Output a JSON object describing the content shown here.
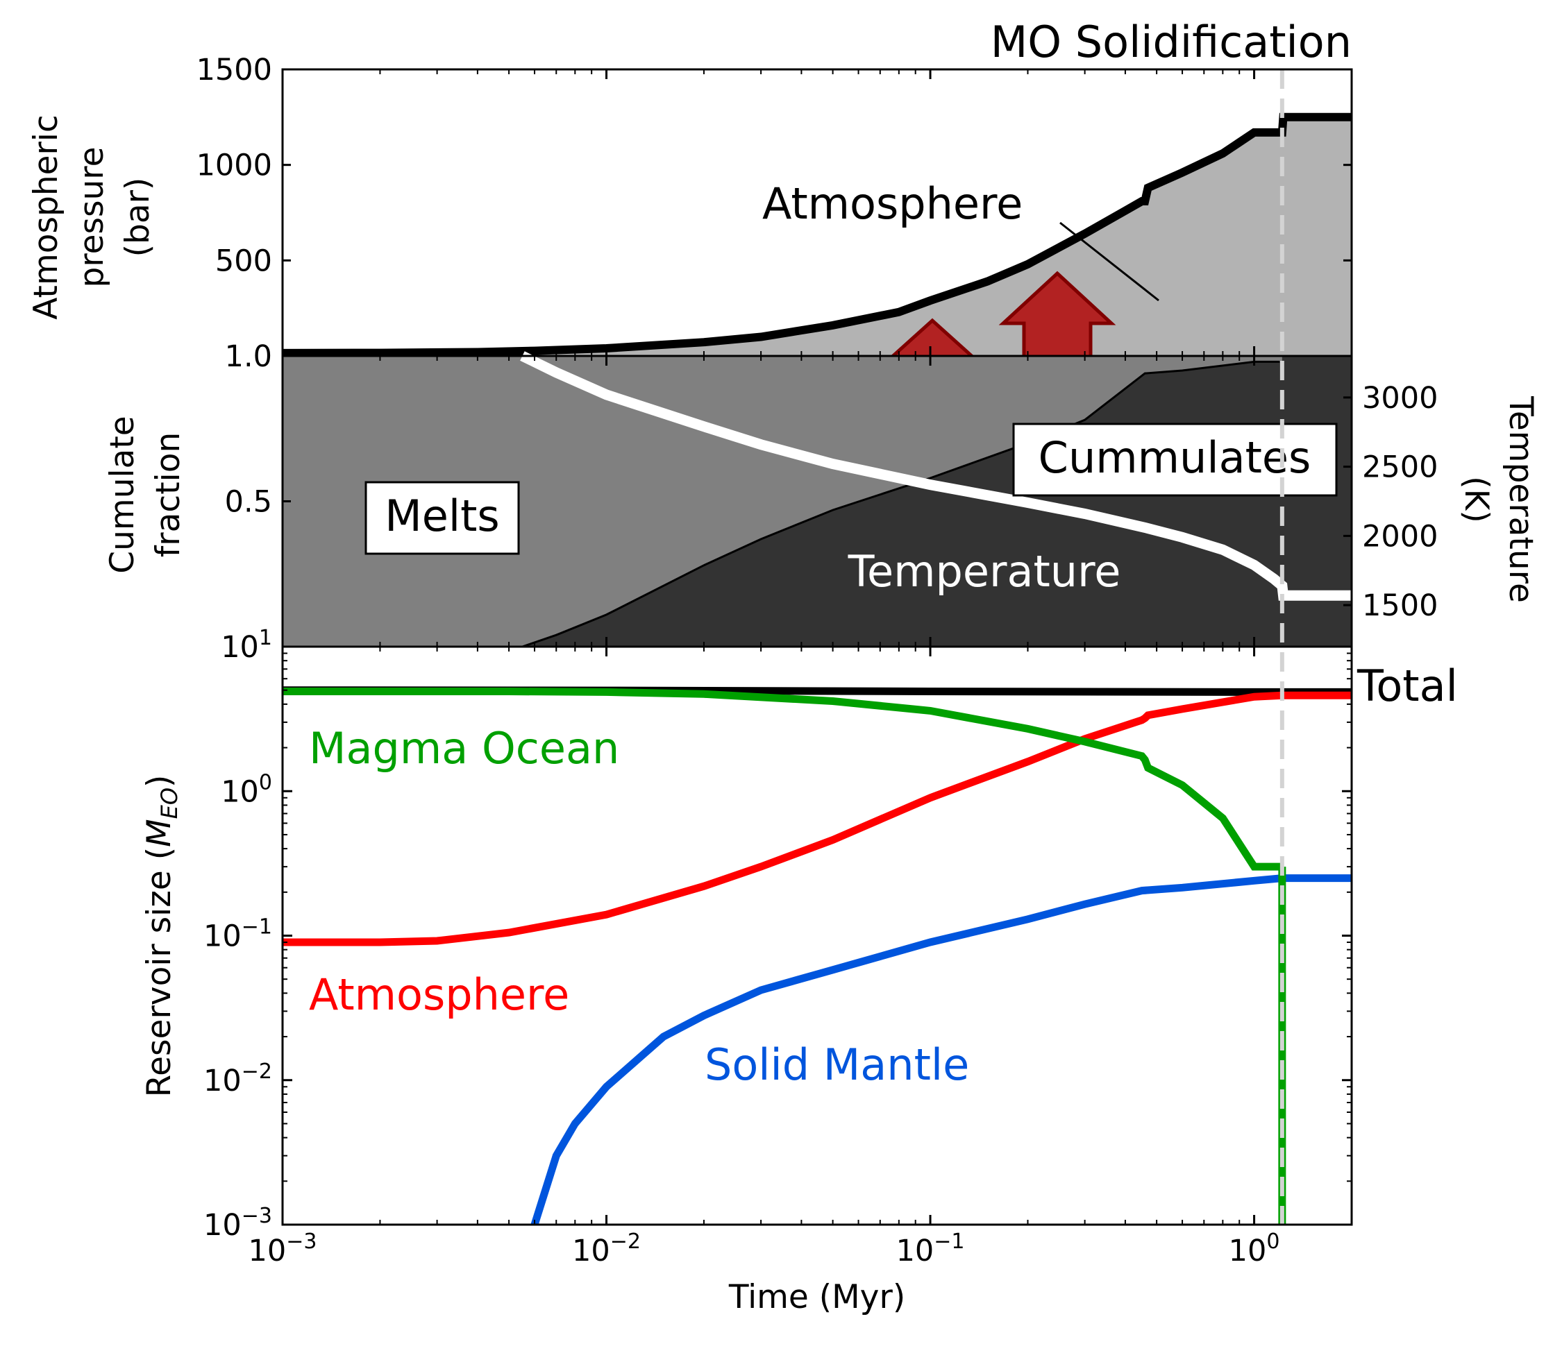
{
  "chart_data": [
    {
      "panel": "top",
      "type": "area",
      "title": "MO Solidification",
      "ylabel_lines": [
        "Atmospheric",
        "pressure",
        "(bar)"
      ],
      "xscale": "log",
      "xlim": [
        0.001,
        2.0
      ],
      "ylim": [
        0,
        1500
      ],
      "yticks": [
        "1500",
        "1000",
        "500"
      ],
      "annotation": "Atmosphere",
      "series": [
        {
          "x": [
            0.001,
            0.002,
            0.004,
            0.006,
            0.01,
            0.02,
            0.03,
            0.05,
            0.08,
            0.1,
            0.15,
            0.2,
            0.3,
            0.4,
            0.45,
            0.46,
            0.47,
            0.6,
            0.8,
            1.0,
            1.22,
            1.23,
            2.0
          ],
          "values": [
            15,
            16,
            20,
            27,
            40,
            72,
            100,
            160,
            230,
            290,
            390,
            480,
            640,
            760,
            810,
            810,
            880,
            960,
            1060,
            1170,
            1170,
            1250,
            1250
          ]
        }
      ],
      "solidification_time": 1.22
    },
    {
      "panel": "middle",
      "type": "area",
      "ylabel_lines": [
        "Cumulate",
        "fraction"
      ],
      "ylabel_right_lines": [
        "Temperature",
        "(K)"
      ],
      "xscale": "log",
      "xlim": [
        0.001,
        2.0
      ],
      "ylim": [
        0,
        1.0
      ],
      "yticks": [
        "1.0",
        "0.5"
      ],
      "yticks_right": [
        "3000",
        "2500",
        "2000",
        "1500"
      ],
      "ylim_right": [
        1200,
        3300
      ],
      "labels": {
        "melts": "Melts",
        "cumulates": "Cummulates",
        "temperature": "Temperature"
      },
      "series": [
        {
          "name": "cumulate",
          "x": [
            0.0055,
            0.007,
            0.01,
            0.02,
            0.03,
            0.05,
            0.1,
            0.2,
            0.3,
            0.46,
            0.6,
            1.0,
            1.2
          ],
          "values": [
            0.0,
            0.04,
            0.11,
            0.28,
            0.37,
            0.47,
            0.58,
            0.7,
            0.78,
            0.94,
            0.95,
            0.98,
            0.98
          ]
        },
        {
          "name": "temperature",
          "x": [
            0.0055,
            0.007,
            0.01,
            0.02,
            0.03,
            0.05,
            0.1,
            0.2,
            0.3,
            0.46,
            0.6,
            0.8,
            1.0,
            1.15,
            1.22,
            1.23,
            2.0
          ],
          "values": [
            3300,
            3180,
            3020,
            2790,
            2660,
            2520,
            2370,
            2240,
            2160,
            2060,
            1990,
            1900,
            1790,
            1690,
            1640,
            1570,
            1570
          ]
        }
      ],
      "solidification_time": 1.22
    },
    {
      "panel": "bottom",
      "type": "line",
      "ylabel": "Reservoir size (",
      "ylabel_italic": "M",
      "ylabel_sub": "EO",
      "ylabel_end": ")",
      "xlabel": "Time (Myr)",
      "xscale": "log",
      "yscale": "log",
      "xlim": [
        0.001,
        2.0
      ],
      "ylim": [
        0.001,
        10
      ],
      "xticks": [
        {
          "value": 0.001,
          "base": "10",
          "exp": "−3"
        },
        {
          "value": 0.01,
          "base": "10",
          "exp": "−2"
        },
        {
          "value": 0.1,
          "base": "10",
          "exp": "−1"
        },
        {
          "value": 1,
          "base": "10",
          "exp": "0"
        }
      ],
      "yticks": [
        {
          "value": 10,
          "base": "10",
          "exp": "1"
        },
        {
          "value": 1,
          "base": "10",
          "exp": "0"
        },
        {
          "value": 0.1,
          "base": "10",
          "exp": "−1"
        },
        {
          "value": 0.01,
          "base": "10",
          "exp": "−2"
        },
        {
          "value": 0.001,
          "base": "10",
          "exp": "−3"
        }
      ],
      "series": [
        {
          "name": "Total",
          "color": "#000000",
          "x": [
            0.001,
            0.01,
            0.1,
            1.0,
            2.0
          ],
          "values": [
            5.0,
            4.98,
            4.9,
            4.85,
            4.85
          ]
        },
        {
          "name": "Magma Ocean",
          "color": "#00a000",
          "x": [
            0.001,
            0.005,
            0.01,
            0.02,
            0.05,
            0.1,
            0.2,
            0.3,
            0.45,
            0.46,
            0.47,
            0.6,
            0.8,
            1.0,
            1.22
          ],
          "values": [
            4.9,
            4.9,
            4.85,
            4.7,
            4.2,
            3.6,
            2.7,
            2.2,
            1.75,
            1.65,
            1.45,
            1.1,
            0.65,
            0.3,
            0.3
          ]
        },
        {
          "name": "Atmosphere",
          "color": "#ff0000",
          "x": [
            0.001,
            0.002,
            0.003,
            0.005,
            0.01,
            0.02,
            0.03,
            0.05,
            0.1,
            0.2,
            0.3,
            0.45,
            0.46,
            0.47,
            0.6,
            1.0,
            1.22,
            2.0
          ],
          "values": [
            0.09,
            0.09,
            0.092,
            0.105,
            0.14,
            0.22,
            0.3,
            0.46,
            0.9,
            1.6,
            2.3,
            3.1,
            3.2,
            3.35,
            3.7,
            4.5,
            4.6,
            4.6
          ]
        },
        {
          "name": "Solid Mantle",
          "color": "#0055dd",
          "x": [
            0.006,
            0.007,
            0.008,
            0.01,
            0.015,
            0.02,
            0.03,
            0.05,
            0.1,
            0.2,
            0.3,
            0.45,
            0.6,
            1.0,
            1.22,
            2.0
          ],
          "values": [
            0.001,
            0.003,
            0.005,
            0.009,
            0.02,
            0.028,
            0.042,
            0.058,
            0.09,
            0.13,
            0.165,
            0.205,
            0.215,
            0.24,
            0.25,
            0.25
          ]
        }
      ],
      "solidification_time": 1.22
    }
  ]
}
